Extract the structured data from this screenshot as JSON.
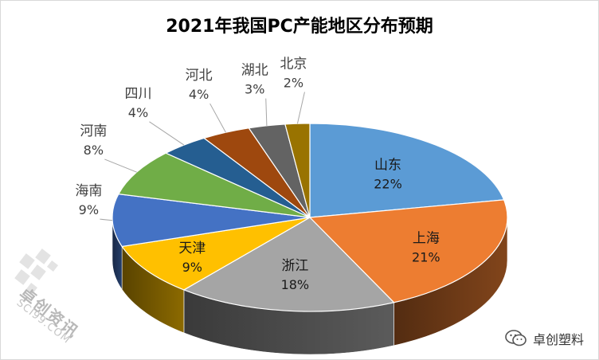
{
  "chart_data": {
    "type": "pie",
    "title": "2021年我国PC产能地区分布预期",
    "slices": [
      {
        "label": "山东",
        "value": 22,
        "value_label": "22%",
        "color": "#5b9bd5"
      },
      {
        "label": "上海",
        "value": 21,
        "value_label": "21%",
        "color": "#ed7d31"
      },
      {
        "label": "浙江",
        "value": 18,
        "value_label": "18%",
        "color": "#a5a5a5"
      },
      {
        "label": "天津",
        "value": 9,
        "value_label": "9%",
        "color": "#ffc000"
      },
      {
        "label": "海南",
        "value": 9,
        "value_label": "9%",
        "color": "#4472c4"
      },
      {
        "label": "河南",
        "value": 8,
        "value_label": "8%",
        "color": "#70ad47"
      },
      {
        "label": "四川",
        "value": 4,
        "value_label": "4%",
        "color": "#255e91"
      },
      {
        "label": "河北",
        "value": 4,
        "value_label": "4%",
        "color": "#9e480e"
      },
      {
        "label": "湖北",
        "value": 3,
        "value_label": "3%",
        "color": "#636363"
      },
      {
        "label": "北京",
        "value": 2,
        "value_label": "2%",
        "color": "#997300"
      }
    ]
  },
  "watermark": {
    "name": "卓创资讯",
    "site": "SCI99.COM"
  },
  "brand": {
    "text": "卓创塑料",
    "icon": "wechat-icon"
  }
}
